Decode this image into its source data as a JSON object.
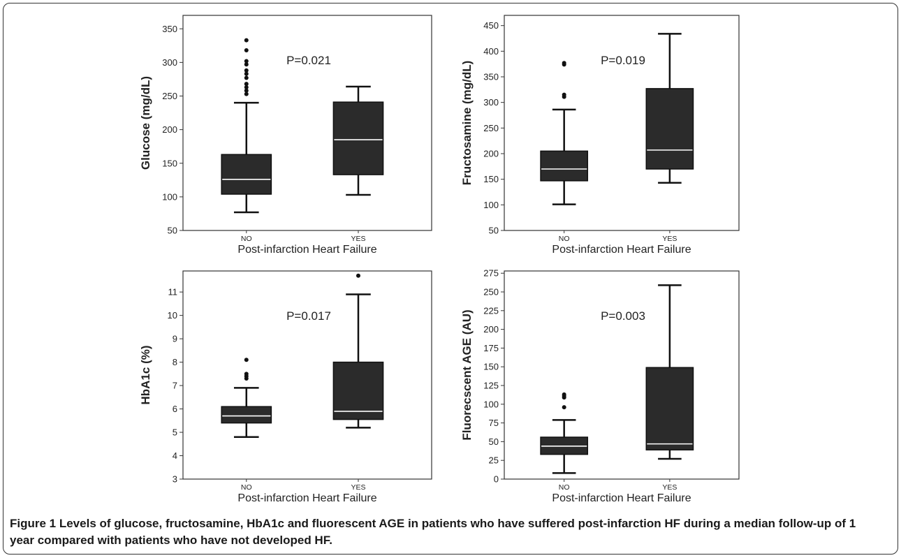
{
  "chart_data": [
    {
      "type": "box",
      "ylabel": "Glucose (mg/dL)",
      "xlabel": "Post-infarction Heart Failure",
      "categories": [
        "NO",
        "YES"
      ],
      "ylim": [
        50,
        370
      ],
      "yticks": [
        50,
        100,
        150,
        200,
        250,
        300,
        350
      ],
      "annotation": "P=0.021",
      "boxes": [
        {
          "category": "NO",
          "whisker_low": 77,
          "q1": 104,
          "median": 126,
          "q3": 163,
          "whisker_high": 240,
          "outliers": [
            253,
            258,
            263,
            268,
            277,
            283,
            288,
            297,
            302,
            318,
            333
          ]
        },
        {
          "category": "YES",
          "whisker_low": 103,
          "q1": 133,
          "median": 185,
          "q3": 241,
          "whisker_high": 264,
          "outliers": []
        }
      ]
    },
    {
      "type": "box",
      "ylabel": "Fructosamine (mg/dL)",
      "xlabel": "Post-infarction Heart Failure",
      "categories": [
        "NO",
        "YES"
      ],
      "ylim": [
        50,
        470
      ],
      "yticks": [
        50,
        100,
        150,
        200,
        250,
        300,
        350,
        400,
        450
      ],
      "annotation": "P=0.019",
      "boxes": [
        {
          "category": "NO",
          "whisker_low": 101,
          "q1": 147,
          "median": 170,
          "q3": 205,
          "whisker_high": 286,
          "outliers": [
            311,
            315,
            374,
            377
          ]
        },
        {
          "category": "YES",
          "whisker_low": 143,
          "q1": 170,
          "median": 207,
          "q3": 327,
          "whisker_high": 434,
          "outliers": []
        }
      ]
    },
    {
      "type": "box",
      "ylabel": "HbA1c (%)",
      "xlabel": "Post-infarction Heart Failure",
      "categories": [
        "NO",
        "YES"
      ],
      "ylim": [
        3,
        11.9
      ],
      "yticks": [
        3,
        4,
        5,
        6,
        7,
        8,
        9,
        10,
        11
      ],
      "annotation": "P=0.017",
      "boxes": [
        {
          "category": "NO",
          "whisker_low": 4.8,
          "q1": 5.4,
          "median": 5.7,
          "q3": 6.1,
          "whisker_high": 6.9,
          "outliers": [
            7.3,
            7.4,
            7.5,
            8.1
          ]
        },
        {
          "category": "YES",
          "whisker_low": 5.2,
          "q1": 5.55,
          "median": 5.9,
          "q3": 8.0,
          "whisker_high": 10.9,
          "outliers": [
            11.7
          ]
        }
      ]
    },
    {
      "type": "box",
      "ylabel": "Fluorecscent AGE (AU)",
      "xlabel": "Post-infarction Heart Failure",
      "categories": [
        "NO",
        "YES"
      ],
      "ylim": [
        0,
        278
      ],
      "yticks": [
        0,
        25,
        50,
        75,
        100,
        125,
        150,
        175,
        200,
        225,
        250,
        275
      ],
      "annotation": "P=0.003",
      "boxes": [
        {
          "category": "NO",
          "whisker_low": 8,
          "q1": 33,
          "median": 44,
          "q3": 56,
          "whisker_high": 79,
          "outliers": [
            96,
            109,
            111,
            113
          ]
        },
        {
          "category": "YES",
          "whisker_low": 27,
          "q1": 39,
          "median": 47,
          "q3": 149,
          "whisker_high": 259,
          "outliers": []
        }
      ]
    }
  ],
  "caption": {
    "label": "Figure 1",
    "text": " Levels of glucose, fructosamine, HbA1c and fluorescent AGE in patients who have suffered post-infarction HF during a median follow-up of 1 year compared with patients who have not developed HF."
  }
}
